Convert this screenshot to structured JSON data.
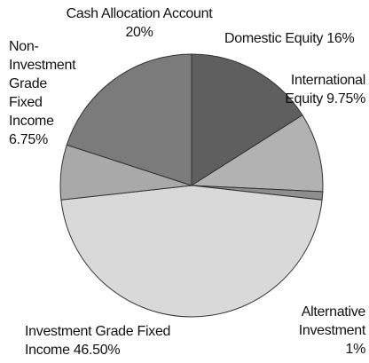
{
  "chart_data": {
    "type": "pie",
    "categories": [
      "Domestic Equity",
      "International Equity",
      "Alternative Investment",
      "Investment Grade Fixed Income",
      "Non-Investment Grade Fixed Income",
      "Cash Allocation Account"
    ],
    "values": [
      16,
      9.75,
      1,
      46.5,
      6.75,
      20
    ],
    "value_labels": [
      "16%",
      "9.75%",
      "1%",
      "46.50%",
      "6.75%",
      "20%"
    ],
    "colors": [
      "#5f5f5f",
      "#b2b2b2",
      "#8e8e8e",
      "#d9d9d9",
      "#a9a9a9",
      "#7b7b7b"
    ]
  }
}
